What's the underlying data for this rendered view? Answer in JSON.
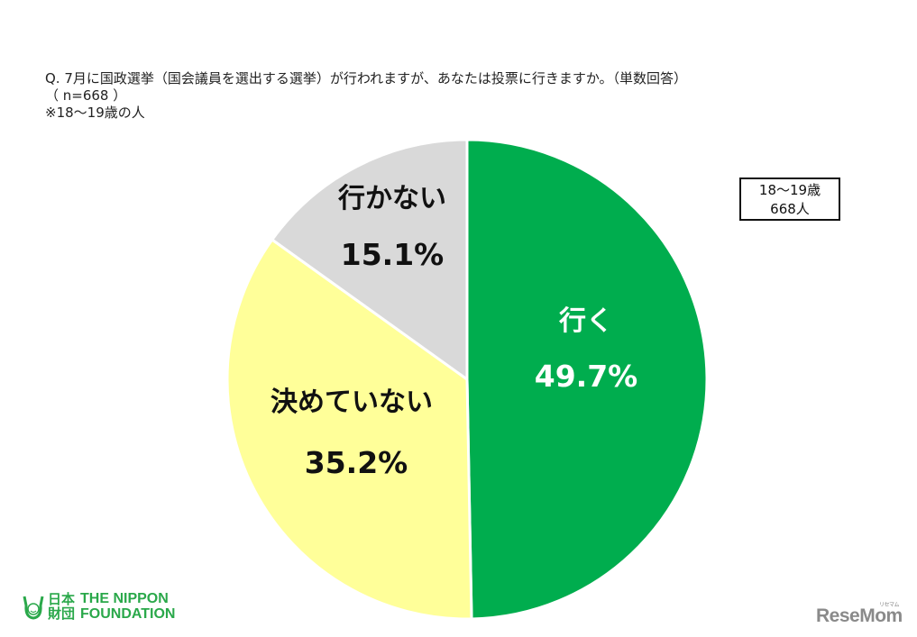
{
  "title": {
    "line1": "Q. 7月に国政選挙（国会議員を選出する選挙）が行われますが、あなたは投票に行きますか。（単数回答）",
    "line2": "（ n=668 ）",
    "line3": "※18～19歳の人"
  },
  "legend_box": {
    "line1": "18～19歳",
    "line2": "668人"
  },
  "colors": {
    "iku": "#00ad4e",
    "kimeteinai": "#ffff99",
    "ikanai": "#d9d9d9",
    "brand_green": "#2aa84a"
  },
  "chart_data": {
    "type": "pie",
    "title": "Q. 7月に国政選挙（国会議員を選出する選挙）が行われますが、あなたは投票に行きますか。（単数回答）",
    "subtitle": "（ n=668 ） ※18～19歳の人",
    "start_angle": "12 o'clock, clockwise",
    "slices": [
      {
        "label": "行く",
        "value": 49.7,
        "display": "49.7%",
        "color": "#00ad4e"
      },
      {
        "label": "決めていない",
        "value": 35.2,
        "display": "35.2%",
        "color": "#ffff99"
      },
      {
        "label": "行かない",
        "value": 15.1,
        "display": "15.1%",
        "color": "#d9d9d9"
      }
    ],
    "legend": {
      "text": [
        "18～19歳",
        "668人"
      ],
      "position": "top-right"
    }
  },
  "footer": {
    "left_logo": {
      "kanji_top": "日本",
      "kanji_bottom": "財団",
      "eng_top": "THE NIPPON",
      "eng_bottom": "FOUNDATION"
    },
    "right_logo": {
      "text": "ReseMom",
      "ruby": "リセマム"
    }
  }
}
